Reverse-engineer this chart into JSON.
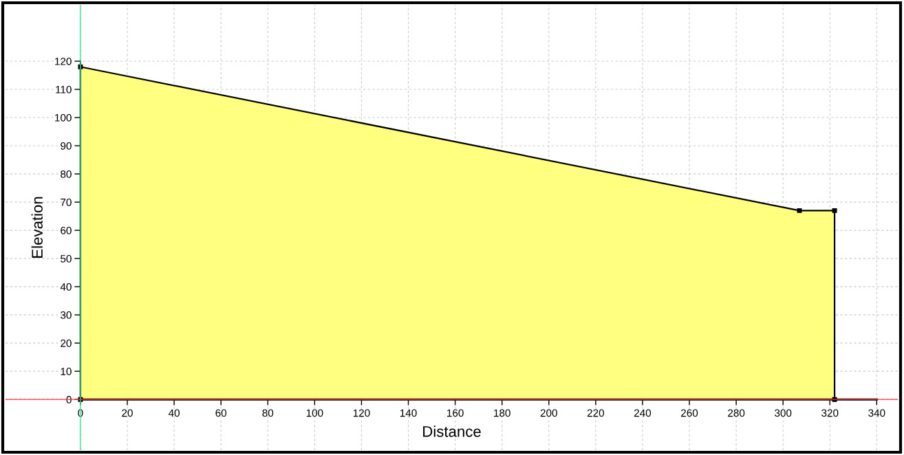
{
  "chart_data": {
    "type": "area",
    "xlabel": "Distance",
    "ylabel": "Elevation",
    "x": [
      0,
      0,
      307,
      322,
      322
    ],
    "series": [
      {
        "color": "#ffff80",
        "values": [
          0,
          118,
          67,
          67,
          0
        ]
      }
    ],
    "xlim": [
      -32,
      349
    ],
    "ylim": [
      -18,
      140
    ],
    "xticks": [
      0,
      20,
      40,
      60,
      80,
      100,
      120,
      140,
      160,
      180,
      200,
      220,
      240,
      260,
      280,
      300,
      320,
      340
    ],
    "yticks": [
      0,
      10,
      20,
      30,
      40,
      50,
      60,
      70,
      80,
      90,
      100,
      110,
      120
    ],
    "grid": true,
    "marker": "square",
    "legend": false,
    "ref_lines": [
      {
        "axis": "x",
        "value": 0,
        "color": "#33ee99"
      },
      {
        "axis": "y",
        "value": 0,
        "color": "#ff3333"
      }
    ]
  }
}
